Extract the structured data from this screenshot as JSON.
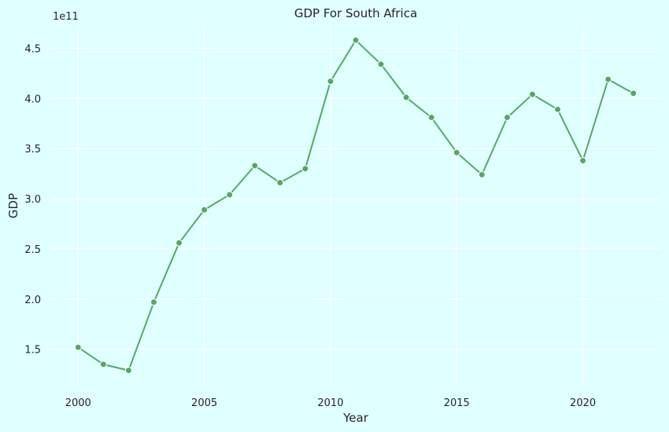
{
  "chart_data": {
    "type": "line",
    "title": "GDP For South Africa",
    "xlabel": "Year",
    "ylabel": "GDP",
    "y_offset_label": "1e11",
    "y_scale": 100000000000.0,
    "x": [
      2000,
      2001,
      2002,
      2003,
      2004,
      2005,
      2006,
      2007,
      2008,
      2009,
      2010,
      2011,
      2012,
      2013,
      2014,
      2015,
      2016,
      2017,
      2018,
      2019,
      2020,
      2021,
      2022
    ],
    "series": [
      {
        "values": [
          152000000000.0,
          135000000000.0,
          129000000000.0,
          197000000000.0,
          256000000000.0,
          289000000000.0,
          304000000000.0,
          333000000000.0,
          316000000000.0,
          330000000000.0,
          417000000000.0,
          458000000000.0,
          434000000000.0,
          401000000000.0,
          381000000000.0,
          346000000000.0,
          324000000000.0,
          381000000000.0,
          404000000000.0,
          389000000000.0,
          338000000000.0,
          419000000000.0,
          405000000000.0
        ]
      }
    ],
    "x_ticks": [
      2000,
      2005,
      2010,
      2015,
      2020
    ],
    "x_tick_labels": [
      "2000",
      "2005",
      "2010",
      "2015",
      "2020"
    ],
    "y_ticks": [
      1.5,
      2.0,
      2.5,
      3.0,
      3.5,
      4.0,
      4.5
    ],
    "y_tick_labels": [
      "1.5",
      "2.0",
      "2.5",
      "3.0",
      "3.5",
      "4.0",
      "4.5"
    ],
    "xlim": [
      1998.9,
      2023.1
    ],
    "ylim": [
      1.13,
      4.73
    ],
    "grid": true,
    "line_color": "#55a868",
    "background_color": "#e0ffff",
    "grid_color": "#ffffff"
  }
}
